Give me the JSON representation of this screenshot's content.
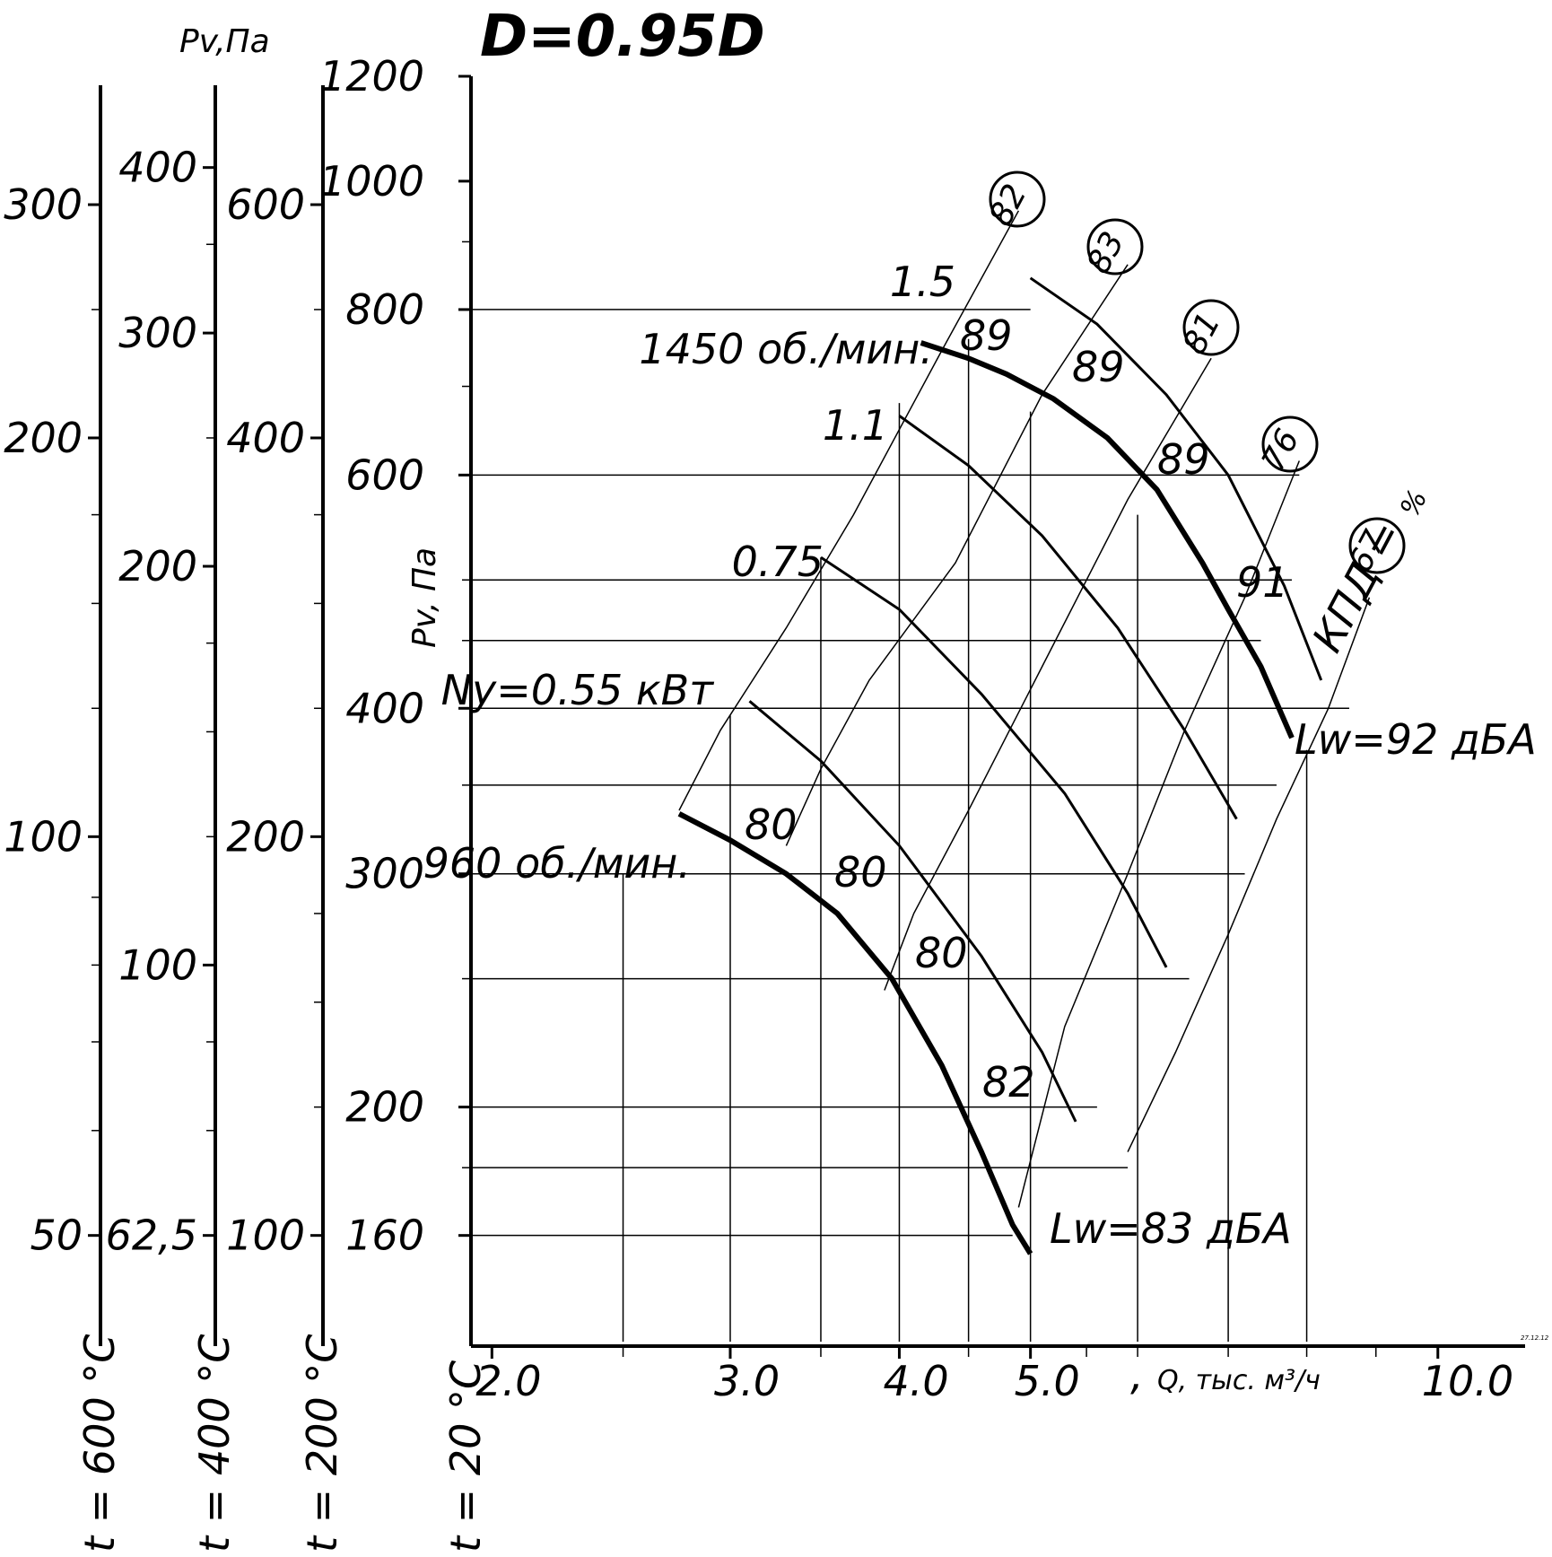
{
  "title": "D=0.95D",
  "chart_data": {
    "type": "line",
    "xlabel": "Q, тыс. м³/ч",
    "ylabel": "Pv, Па",
    "x_scale": "log",
    "y_scale": "log",
    "xlim": [
      1.93,
      11.6
    ],
    "ylim": [
      132,
      1200
    ],
    "x_ticks": [
      2.0,
      3.0,
      4.0,
      5.0,
      10.0
    ],
    "x_tick_labels": [
      "2.0",
      "3.0",
      "4.0",
      "5.0",
      "10.0"
    ],
    "x_minor_ticks": [
      2.5,
      3.5,
      4.5,
      5.5,
      6.0,
      7.0,
      8.0,
      9.0
    ],
    "y_ticks": [
      160,
      200,
      300,
      400,
      600,
      800,
      1000,
      1200
    ],
    "y_tick_labels": [
      "160",
      "200",
      "300",
      "400",
      "600",
      "800",
      "1000",
      "1200"
    ],
    "y_minor_ticks": [
      180,
      250,
      350,
      450,
      500,
      700,
      900
    ],
    "temperature_scales": [
      {
        "label": "t = 600 °C",
        "ticks": [
          {
            "v": 50,
            "label": "50"
          },
          {
            "v": 100,
            "label": "100"
          },
          {
            "v": 200,
            "label": "200"
          },
          {
            "v": 300,
            "label": "300"
          }
        ],
        "minor": [
          60,
          70,
          80,
          90,
          125,
          150,
          175,
          250
        ]
      },
      {
        "label": "t = 400 °C",
        "ticks": [
          {
            "v": 62.5,
            "label": "62,5"
          },
          {
            "v": 100,
            "label": "100"
          },
          {
            "v": 200,
            "label": "200"
          },
          {
            "v": 300,
            "label": "300"
          },
          {
            "v": 400,
            "label": "400"
          }
        ],
        "minor": [
          75,
          87.5,
          125,
          150,
          175,
          250,
          350
        ]
      },
      {
        "label": "t = 200 °C",
        "ticks": [
          {
            "v": 100,
            "label": "100"
          },
          {
            "v": 200,
            "label": "200"
          },
          {
            "v": 400,
            "label": "400"
          },
          {
            "v": 600,
            "label": "600"
          }
        ],
        "minor": [
          125,
          150,
          175,
          250,
          300,
          350,
          500
        ]
      },
      {
        "label": "t = 20 °C",
        "ticks": [],
        "minor": []
      }
    ],
    "temperature_scale_title": "Pv,Па",
    "series": [
      {
        "name": "1450 об./мин.",
        "role": "speed",
        "x": [
          4.15,
          4.5,
          4.8,
          5.2,
          5.7,
          6.2,
          6.7,
          7.0,
          7.4,
          7.8
        ],
        "y": [
          755,
          735,
          715,
          685,
          640,
          585,
          515,
          475,
          430,
          380
        ]
      },
      {
        "name": "960 об./мин.",
        "role": "speed",
        "x": [
          2.75,
          3.0,
          3.3,
          3.6,
          3.95,
          4.3,
          4.6,
          4.85,
          5.0
        ],
        "y": [
          333,
          318,
          300,
          280,
          250,
          215,
          185,
          163,
          155
        ]
      },
      {
        "name": "1.5",
        "role": "power",
        "x": [
          5.0,
          5.6,
          6.3,
          7.0,
          7.7,
          8.2
        ],
        "y": [
          845,
          780,
          690,
          600,
          495,
          420
        ]
      },
      {
        "name": "1.1",
        "role": "power",
        "x": [
          4.0,
          4.5,
          5.1,
          5.8,
          6.5,
          7.1
        ],
        "y": [
          665,
          610,
          540,
          460,
          385,
          330
        ]
      },
      {
        "name": "0.75",
        "role": "power",
        "x": [
          3.5,
          4.0,
          4.6,
          5.3,
          5.9,
          6.3
        ],
        "y": [
          520,
          475,
          410,
          345,
          290,
          255
        ]
      },
      {
        "name": "0.55",
        "role": "power",
        "x": [
          3.1,
          3.5,
          4.0,
          4.6,
          5.1,
          5.4
        ],
        "y": [
          405,
          365,
          315,
          260,
          220,
          195
        ]
      },
      {
        "name": "82",
        "role": "efficiency",
        "x": [
          4.9,
          4.3,
          3.7,
          3.3,
          2.95,
          2.75
        ],
        "y": [
          950,
          745,
          560,
          460,
          385,
          335
        ]
      },
      {
        "name": "83",
        "role": "efficiency",
        "x": [
          5.9,
          5.1,
          4.4,
          3.8,
          3.5,
          3.3
        ],
        "y": [
          865,
          690,
          515,
          420,
          360,
          315
        ]
      },
      {
        "name": "81",
        "role": "efficiency",
        "x": [
          6.8,
          5.9,
          5.1,
          4.5,
          4.1,
          3.9
        ],
        "y": [
          735,
          575,
          430,
          335,
          280,
          245
        ]
      },
      {
        "name": "76",
        "role": "efficiency",
        "x": [
          7.9,
          7.2,
          6.5,
          5.9,
          5.3,
          4.9
        ],
        "y": [
          615,
          485,
          385,
          300,
          230,
          168
        ]
      },
      {
        "name": "67",
        "role": "efficiency",
        "x": [
          8.9,
          8.3,
          7.6,
          7.0,
          6.4,
          5.9
        ],
        "y": [
          485,
          400,
          330,
          270,
          220,
          185
        ]
      }
    ],
    "labels": {
      "speed_hi": "1450 об./мин.",
      "speed_lo": "960 об./мин.",
      "power_1_5": "1.5",
      "power_1_1": "1.1",
      "power_0_75": "0.75",
      "power_0_55": "Ny=0.55 кВт",
      "lw_hi": "Lw=92 дБА",
      "lw_lo": "Lw=83 дБА",
      "kpd": "КПД =",
      "kpd_unit": "%",
      "eff_circled": [
        "82",
        "83",
        "81",
        "76",
        "67"
      ],
      "noise_labels": [
        "89",
        "89",
        "89",
        "91",
        "80",
        "80",
        "80",
        "82"
      ],
      "x_comma": ",",
      "stamp": "27.12.12"
    }
  }
}
